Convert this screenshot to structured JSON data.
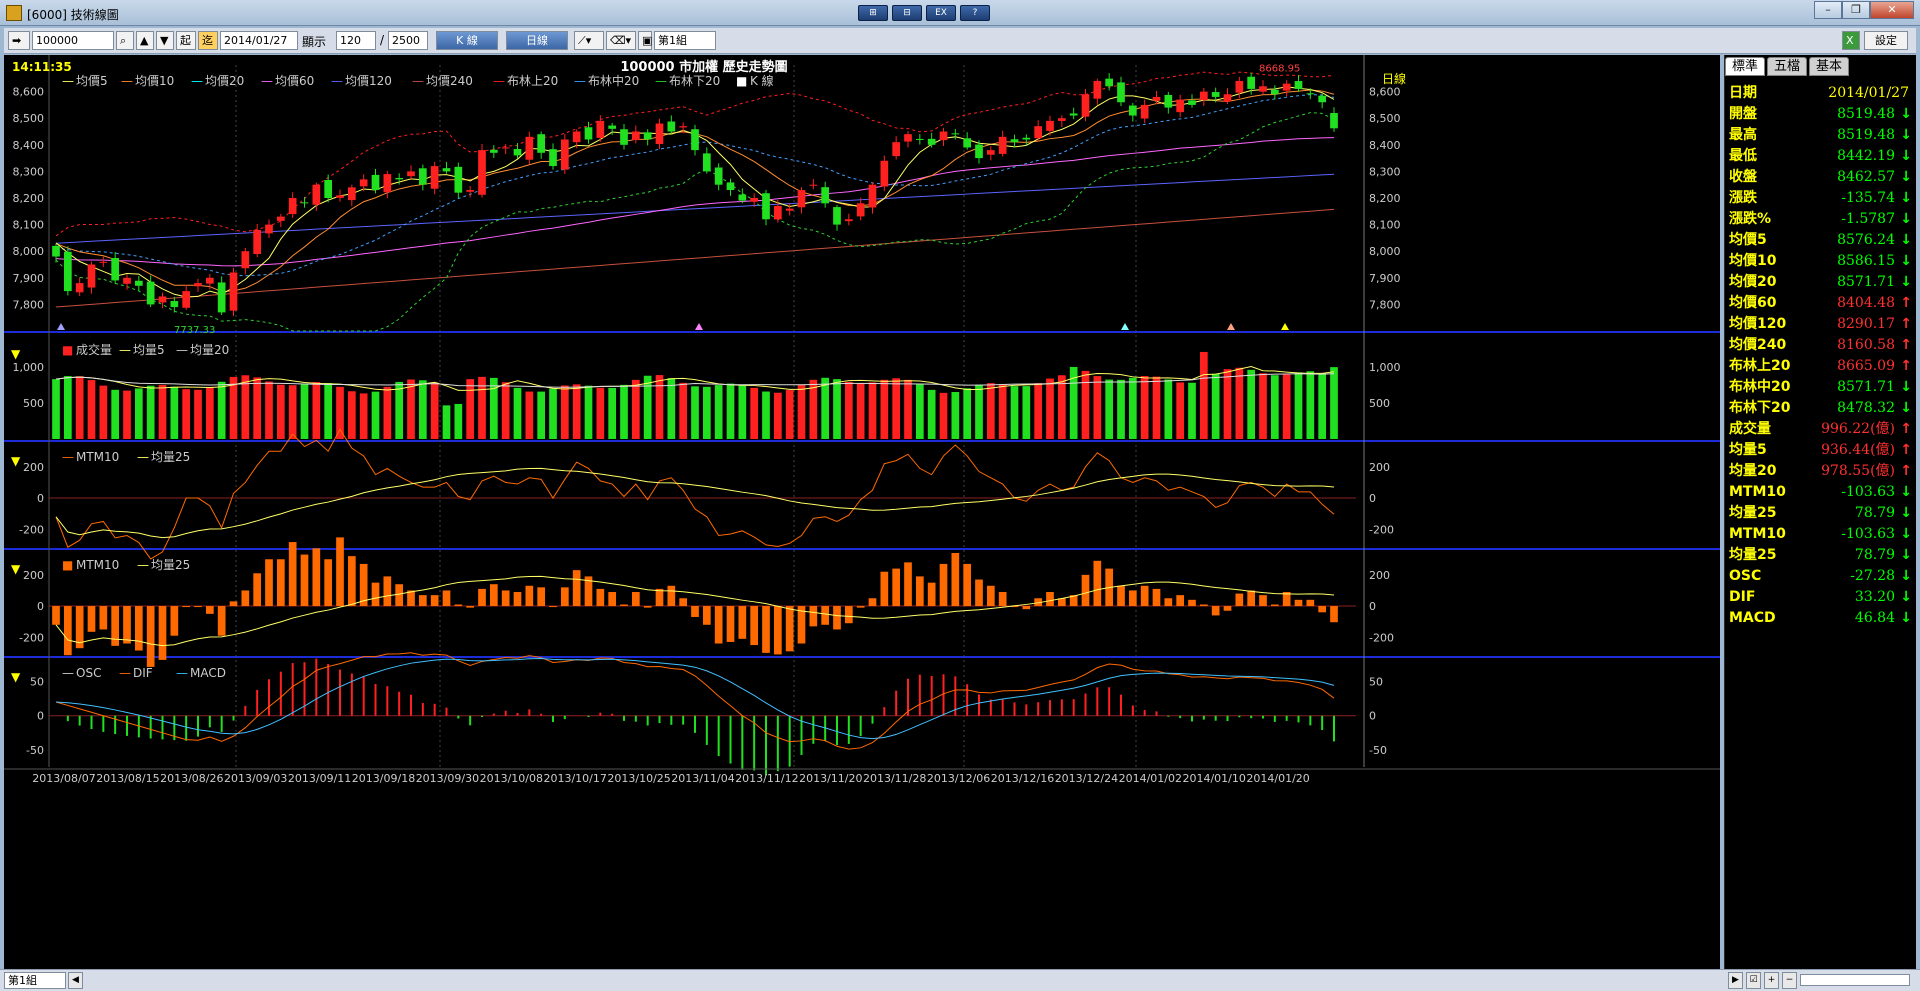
{
  "window": {
    "title": "[6000] 技術線圖",
    "top_buttons": [
      "⊞",
      "⊟",
      "EX",
      "?"
    ]
  },
  "toolbar": {
    "symbol": "100000",
    "btn_start": "起",
    "btn_now": "迄",
    "date": "2014/01/27",
    "show_label": "顯示",
    "count": "120",
    "total": "2500",
    "ktype": "K 線",
    "period": "日線",
    "group": "第1組",
    "settings": "設定"
  },
  "chart": {
    "time": "14:11:35",
    "title": "100000 市加權  歷史走勢圖",
    "period_label": "日線",
    "price_legend": [
      "均價5",
      "均價10",
      "均價20",
      "均價60",
      "均價120",
      "均價240",
      "布林上20",
      "布林中20",
      "布林下20",
      "K 線"
    ],
    "price_legend_colors": [
      "#ffff66",
      "#ff8c32",
      "#00ffff",
      "#ff66ff",
      "#5a64ff",
      "#c8503c",
      "#ff2020",
      "#40a0ff",
      "#30d030",
      "#ffffff"
    ],
    "high_label": "8668.95",
    "low_label": "7737.33",
    "volume_legend": [
      "成交量",
      "均量5",
      "均量20"
    ],
    "mtm_legend": [
      "MTM10",
      "均量25"
    ],
    "mtm2_legend": [
      "MTM10",
      "均量25"
    ],
    "macd_legend": [
      "OSC",
      "DIF",
      "MACD"
    ]
  },
  "chart_data": [
    {
      "type": "candlestick",
      "title": "100000 市加權  歷史走勢圖",
      "ylim": [
        7700,
        8700
      ],
      "yticks": [
        7800,
        7900,
        8000,
        8100,
        8200,
        8300,
        8400,
        8500,
        8600
      ],
      "xlabels": [
        "2013/08/07",
        "2013/08/15",
        "2013/08/26",
        "2013/09/03",
        "2013/09/11",
        "2013/09/18",
        "2013/09/30",
        "2013/10/08",
        "2013/10/17",
        "2013/10/25",
        "2013/11/04",
        "2013/11/12",
        "2013/11/20",
        "2013/11/28",
        "2013/12/06",
        "2013/12/16",
        "2013/12/24",
        "2014/01/02",
        "2014/01/10",
        "2014/01/20"
      ],
      "close": [
        7980,
        7850,
        7880,
        7950,
        7960,
        7890,
        7900,
        7870,
        7800,
        7830,
        7790,
        7850,
        7880,
        7900,
        7770,
        7920,
        8000,
        8080,
        8100,
        8130,
        8200,
        8180,
        8250,
        8200,
        8210,
        8240,
        8270,
        8230,
        8290,
        8270,
        8300,
        8250,
        8320,
        8300,
        8220,
        8230,
        8380,
        8370,
        8390,
        8360,
        8430,
        8370,
        8320,
        8420,
        8450,
        8420,
        8490,
        8460,
        8400,
        8450,
        8420,
        8480,
        8450,
        8470,
        8380,
        8300,
        8250,
        8230,
        8190,
        8200,
        8120,
        8170,
        8160,
        8230,
        8250,
        8180,
        8100,
        8120,
        8180,
        8250,
        8340,
        8410,
        8440,
        8420,
        8400,
        8450,
        8440,
        8390,
        8350,
        8380,
        8430,
        8410,
        8420,
        8470,
        8490,
        8500,
        8510,
        8590,
        8640,
        8620,
        8560,
        8510,
        8550,
        8580,
        8540,
        8570,
        8550,
        8600,
        8580,
        8590,
        8640,
        8610,
        8620,
        8590,
        8630,
        8610,
        8590,
        8560,
        8462
      ],
      "last": {
        "date": "2014/01/27",
        "open": 8519.48,
        "high": 8519.48,
        "low": 8442.19,
        "close": 8462.57
      }
    },
    {
      "type": "bar",
      "title": "成交量",
      "ylim": [
        0,
        1400
      ],
      "yticks": [
        500,
        1000
      ],
      "unit": "億",
      "last": 996.22
    },
    {
      "type": "line",
      "title": "MTM10",
      "ylim": [
        -320,
        340
      ],
      "yticks": [
        -200,
        0,
        200
      ],
      "last": -103.63
    },
    {
      "type": "bar",
      "title": "MTM10",
      "ylim": [
        -320,
        340
      ],
      "yticks": [
        -200,
        0,
        200
      ],
      "last": -103.63
    },
    {
      "type": "bar",
      "title": "MACD",
      "ylim": [
        -75,
        80
      ],
      "yticks": [
        -50,
        0,
        50
      ],
      "osc_last": -27.28,
      "dif_last": 33.2,
      "macd_last": 46.84
    }
  ],
  "side_panel": {
    "tabs": [
      "標準",
      "五檔",
      "基本"
    ],
    "rows": [
      {
        "k": "日期",
        "v": "2014/01/27",
        "c": "#ffff00",
        "a": ""
      },
      {
        "k": "開盤",
        "v": "8519.48",
        "c": "#00ff00",
        "a": "↓"
      },
      {
        "k": "最高",
        "v": "8519.48",
        "c": "#00ff00",
        "a": "↓"
      },
      {
        "k": "最低",
        "v": "8442.19",
        "c": "#00ff00",
        "a": "↓"
      },
      {
        "k": "收盤",
        "v": "8462.57",
        "c": "#00ff00",
        "a": "↓"
      },
      {
        "k": "漲跌",
        "v": "-135.74",
        "c": "#00ff00",
        "a": "↓"
      },
      {
        "k": "漲跌%",
        "v": "-1.5787",
        "c": "#00ff00",
        "a": "↓"
      },
      {
        "k": "均價5",
        "v": "8576.24",
        "c": "#00ff00",
        "a": "↓"
      },
      {
        "k": "均價10",
        "v": "8586.15",
        "c": "#00ff00",
        "a": "↓"
      },
      {
        "k": "均價20",
        "v": "8571.71",
        "c": "#00ff00",
        "a": "↓"
      },
      {
        "k": "均價60",
        "v": "8404.48",
        "c": "#ff3030",
        "a": "↑"
      },
      {
        "k": "均價120",
        "v": "8290.17",
        "c": "#ff3030",
        "a": "↑"
      },
      {
        "k": "均價240",
        "v": "8160.58",
        "c": "#ff3030",
        "a": "↑"
      },
      {
        "k": "布林上20",
        "v": "8665.09",
        "c": "#ff3030",
        "a": "↑"
      },
      {
        "k": "布林中20",
        "v": "8571.71",
        "c": "#00ff00",
        "a": "↓"
      },
      {
        "k": "布林下20",
        "v": "8478.32",
        "c": "#00ff00",
        "a": "↓"
      },
      {
        "k": "成交量",
        "v": "996.22(億)",
        "c": "#ff3030",
        "a": "↑"
      },
      {
        "k": "均量5",
        "v": "936.44(億)",
        "c": "#ff3030",
        "a": "↑"
      },
      {
        "k": "均量20",
        "v": "978.55(億)",
        "c": "#ff3030",
        "a": "↑"
      },
      {
        "k": "MTM10",
        "v": "-103.63",
        "c": "#00ff00",
        "a": "↓"
      },
      {
        "k": "均量25",
        "v": "78.79",
        "c": "#00ff00",
        "a": "↓"
      },
      {
        "k": "MTM10",
        "v": "-103.63",
        "c": "#00ff00",
        "a": "↓"
      },
      {
        "k": "均量25",
        "v": "78.79",
        "c": "#00ff00",
        "a": "↓"
      },
      {
        "k": "OSC",
        "v": "-27.28",
        "c": "#00ff00",
        "a": "↓"
      },
      {
        "k": "DIF",
        "v": "33.20",
        "c": "#00ff00",
        "a": "↓"
      },
      {
        "k": "MACD",
        "v": "46.84",
        "c": "#00ff00",
        "a": "↓"
      }
    ]
  },
  "statusbar": {
    "group": "第1組"
  }
}
